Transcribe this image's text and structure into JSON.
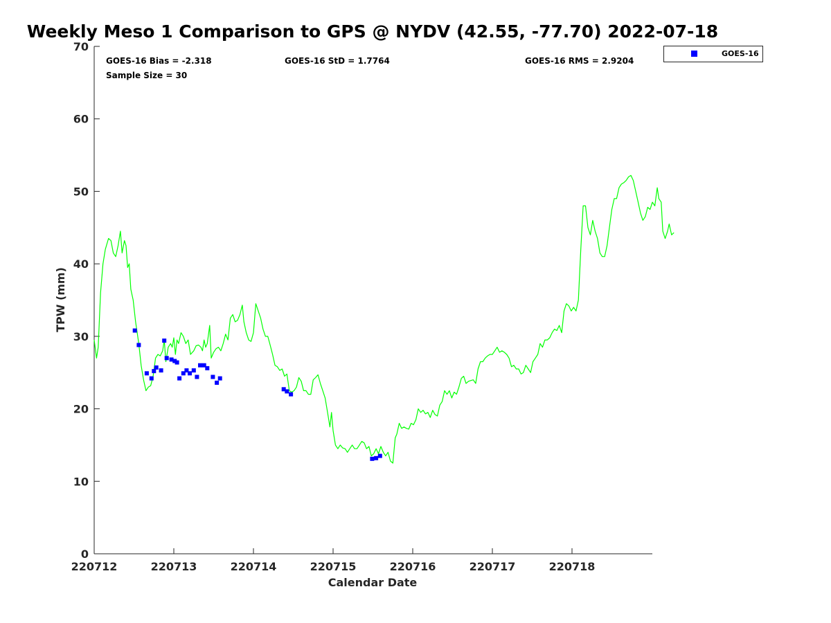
{
  "chart_data": {
    "type": "line",
    "title": "Weekly Meso 1 Comparison to GPS @ NYDV (42.55, -77.70) 2022-07-18",
    "xlabel": "Calendar Date",
    "ylabel": "TPW (mm)",
    "xlim": [
      0,
      7
    ],
    "ylim": [
      0,
      70
    ],
    "x_tick_labels": [
      "220712",
      "220713",
      "220714",
      "220715",
      "220716",
      "220717",
      "220718"
    ],
    "x_ticks": [
      0,
      1,
      2,
      3,
      4,
      5,
      6
    ],
    "y_ticks": [
      0,
      10,
      20,
      30,
      40,
      50,
      60,
      70
    ],
    "grid": false,
    "legend_position": "top-right",
    "stats": {
      "bias": "GOES-16 Bias = -2.318",
      "std": "GOES-16 StD = 1.7764",
      "rms": "GOES-16 RMS = 2.9204",
      "sample": "Sample Size = 30"
    },
    "series": [
      {
        "kind": "line",
        "color": "#00ff00",
        "points": [
          [
            0.0,
            29.5
          ],
          [
            0.03,
            27.0
          ],
          [
            0.05,
            28.5
          ],
          [
            0.08,
            36.0
          ],
          [
            0.11,
            40.0
          ],
          [
            0.14,
            42.0
          ],
          [
            0.18,
            43.5
          ],
          [
            0.21,
            43.2
          ],
          [
            0.24,
            41.5
          ],
          [
            0.27,
            41.0
          ],
          [
            0.3,
            42.5
          ],
          [
            0.33,
            44.5
          ],
          [
            0.35,
            41.5
          ],
          [
            0.38,
            43.2
          ],
          [
            0.4,
            42.5
          ],
          [
            0.42,
            39.5
          ],
          [
            0.44,
            40.0
          ],
          [
            0.46,
            36.5
          ],
          [
            0.49,
            35.0
          ],
          [
            0.52,
            32.0
          ],
          [
            0.56,
            29.0
          ],
          [
            0.59,
            26.0
          ],
          [
            0.62,
            24.0
          ],
          [
            0.65,
            22.5
          ],
          [
            0.68,
            23.0
          ],
          [
            0.71,
            23.2
          ],
          [
            0.74,
            24.5
          ],
          [
            0.77,
            27.0
          ],
          [
            0.8,
            27.5
          ],
          [
            0.83,
            27.3
          ],
          [
            0.86,
            28.0
          ],
          [
            0.88,
            29.5
          ],
          [
            0.9,
            26.5
          ],
          [
            0.93,
            28.5
          ],
          [
            0.96,
            29.0
          ],
          [
            0.98,
            28.5
          ],
          [
            1.0,
            29.8
          ],
          [
            1.02,
            27.5
          ],
          [
            1.04,
            29.5
          ],
          [
            1.06,
            29.0
          ],
          [
            1.09,
            30.5
          ],
          [
            1.12,
            30.0
          ],
          [
            1.15,
            29.0
          ],
          [
            1.18,
            29.5
          ],
          [
            1.21,
            27.5
          ],
          [
            1.25,
            28.0
          ],
          [
            1.28,
            28.7
          ],
          [
            1.31,
            28.8
          ],
          [
            1.34,
            28.5
          ],
          [
            1.36,
            28.0
          ],
          [
            1.38,
            29.5
          ],
          [
            1.4,
            28.5
          ],
          [
            1.42,
            29.0
          ],
          [
            1.45,
            31.5
          ],
          [
            1.47,
            27.0
          ],
          [
            1.5,
            27.8
          ],
          [
            1.53,
            28.3
          ],
          [
            1.56,
            28.5
          ],
          [
            1.59,
            28.0
          ],
          [
            1.62,
            29.0
          ],
          [
            1.65,
            30.3
          ],
          [
            1.68,
            29.5
          ],
          [
            1.71,
            32.5
          ],
          [
            1.74,
            33.0
          ],
          [
            1.77,
            32.0
          ],
          [
            1.8,
            32.2
          ],
          [
            1.83,
            33.0
          ],
          [
            1.86,
            34.3
          ],
          [
            1.88,
            32.0
          ],
          [
            1.91,
            30.5
          ],
          [
            1.94,
            29.5
          ],
          [
            1.97,
            29.3
          ],
          [
            2.0,
            30.5
          ],
          [
            2.03,
            34.5
          ],
          [
            2.06,
            33.5
          ],
          [
            2.09,
            32.5
          ],
          [
            2.12,
            31.0
          ],
          [
            2.15,
            30.0
          ],
          [
            2.18,
            30.0
          ],
          [
            2.21,
            28.8
          ],
          [
            2.24,
            27.5
          ],
          [
            2.27,
            26.0
          ],
          [
            2.3,
            25.8
          ],
          [
            2.33,
            25.3
          ],
          [
            2.36,
            25.5
          ],
          [
            2.39,
            24.5
          ],
          [
            2.42,
            24.8
          ],
          [
            2.45,
            22.5
          ],
          [
            2.48,
            22.3
          ],
          [
            2.51,
            22.5
          ],
          [
            2.54,
            23.0
          ],
          [
            2.57,
            24.3
          ],
          [
            2.6,
            23.8
          ],
          [
            2.63,
            22.5
          ],
          [
            2.66,
            22.5
          ],
          [
            2.69,
            22.0
          ],
          [
            2.72,
            22.0
          ],
          [
            2.75,
            24.0
          ],
          [
            2.78,
            24.3
          ],
          [
            2.81,
            24.7
          ],
          [
            2.84,
            23.5
          ],
          [
            2.87,
            22.5
          ],
          [
            2.9,
            21.5
          ],
          [
            2.93,
            19.5
          ],
          [
            2.96,
            17.5
          ],
          [
            2.98,
            19.5
          ],
          [
            3.0,
            17.0
          ],
          [
            3.03,
            15.0
          ],
          [
            3.06,
            14.5
          ],
          [
            3.09,
            15.0
          ],
          [
            3.12,
            14.6
          ],
          [
            3.15,
            14.5
          ],
          [
            3.18,
            14.0
          ],
          [
            3.21,
            14.5
          ],
          [
            3.24,
            15.0
          ],
          [
            3.27,
            14.5
          ],
          [
            3.3,
            14.5
          ],
          [
            3.33,
            15.0
          ],
          [
            3.36,
            15.5
          ],
          [
            3.39,
            15.3
          ],
          [
            3.42,
            14.5
          ],
          [
            3.45,
            14.8
          ],
          [
            3.48,
            13.5
          ],
          [
            3.51,
            13.8
          ],
          [
            3.54,
            14.5
          ],
          [
            3.57,
            13.8
          ],
          [
            3.6,
            14.8
          ],
          [
            3.63,
            14.0
          ],
          [
            3.66,
            13.5
          ],
          [
            3.69,
            14.0
          ],
          [
            3.72,
            12.8
          ],
          [
            3.75,
            12.5
          ],
          [
            3.78,
            16.0
          ],
          [
            3.8,
            16.5
          ],
          [
            3.83,
            18.0
          ],
          [
            3.86,
            17.3
          ],
          [
            3.89,
            17.5
          ],
          [
            3.92,
            17.3
          ],
          [
            3.95,
            17.2
          ],
          [
            3.98,
            18.0
          ],
          [
            4.01,
            17.8
          ],
          [
            4.04,
            18.5
          ],
          [
            4.07,
            20.0
          ],
          [
            4.1,
            19.5
          ],
          [
            4.13,
            19.8
          ],
          [
            4.16,
            19.3
          ],
          [
            4.19,
            19.5
          ],
          [
            4.22,
            18.8
          ],
          [
            4.25,
            19.8
          ],
          [
            4.28,
            19.2
          ],
          [
            4.31,
            19.0
          ],
          [
            4.34,
            20.5
          ],
          [
            4.37,
            21.0
          ],
          [
            4.4,
            22.5
          ],
          [
            4.43,
            22.0
          ],
          [
            4.46,
            22.5
          ],
          [
            4.49,
            21.5
          ],
          [
            4.52,
            22.3
          ],
          [
            4.55,
            22.0
          ],
          [
            4.58,
            23.0
          ],
          [
            4.61,
            24.2
          ],
          [
            4.64,
            24.5
          ],
          [
            4.67,
            23.5
          ],
          [
            4.7,
            23.8
          ],
          [
            4.73,
            23.9
          ],
          [
            4.76,
            24.0
          ],
          [
            4.79,
            23.5
          ],
          [
            4.82,
            25.5
          ],
          [
            4.85,
            26.5
          ],
          [
            4.88,
            26.5
          ],
          [
            4.91,
            27.0
          ],
          [
            4.94,
            27.3
          ],
          [
            4.97,
            27.5
          ],
          [
            5.0,
            27.5
          ],
          [
            5.03,
            28.0
          ],
          [
            5.06,
            28.5
          ],
          [
            5.09,
            27.8
          ],
          [
            5.12,
            28.0
          ],
          [
            5.15,
            27.8
          ],
          [
            5.18,
            27.5
          ],
          [
            5.21,
            27.0
          ],
          [
            5.24,
            25.8
          ],
          [
            5.27,
            26.0
          ],
          [
            5.3,
            25.5
          ],
          [
            5.33,
            25.5
          ],
          [
            5.36,
            24.8
          ],
          [
            5.39,
            25.0
          ],
          [
            5.42,
            26.0
          ],
          [
            5.45,
            25.5
          ],
          [
            5.48,
            25.0
          ],
          [
            5.51,
            26.5
          ],
          [
            5.54,
            27.0
          ],
          [
            5.57,
            27.5
          ],
          [
            5.6,
            29.0
          ],
          [
            5.63,
            28.5
          ],
          [
            5.66,
            29.5
          ],
          [
            5.69,
            29.5
          ],
          [
            5.72,
            29.8
          ],
          [
            5.75,
            30.5
          ],
          [
            5.78,
            31.0
          ],
          [
            5.81,
            30.8
          ],
          [
            5.84,
            31.5
          ],
          [
            5.87,
            30.5
          ],
          [
            5.9,
            33.5
          ],
          [
            5.93,
            34.5
          ],
          [
            5.96,
            34.2
          ],
          [
            5.99,
            33.5
          ],
          [
            6.02,
            34.0
          ],
          [
            6.05,
            33.5
          ],
          [
            6.08,
            35.0
          ],
          [
            6.11,
            42.0
          ],
          [
            6.14,
            48.0
          ],
          [
            6.17,
            48.0
          ],
          [
            6.2,
            45.0
          ],
          [
            6.23,
            44.0
          ],
          [
            6.26,
            46.0
          ],
          [
            6.29,
            44.5
          ],
          [
            6.32,
            43.5
          ],
          [
            6.35,
            41.5
          ],
          [
            6.38,
            41.0
          ],
          [
            6.41,
            41.0
          ],
          [
            6.44,
            42.5
          ],
          [
            6.47,
            45.0
          ],
          [
            6.5,
            47.5
          ],
          [
            6.53,
            49.0
          ],
          [
            6.56,
            49.0
          ],
          [
            6.59,
            50.5
          ],
          [
            6.62,
            51.0
          ],
          [
            6.65,
            51.2
          ],
          [
            6.68,
            51.5
          ],
          [
            6.71,
            52.0
          ],
          [
            6.74,
            52.2
          ],
          [
            6.77,
            51.5
          ],
          [
            6.8,
            50.0
          ],
          [
            6.83,
            48.5
          ],
          [
            6.86,
            47.0
          ],
          [
            6.89,
            46.0
          ],
          [
            6.92,
            46.5
          ],
          [
            6.95,
            47.8
          ],
          [
            6.98,
            47.5
          ],
          [
            7.01,
            48.5
          ],
          [
            7.04,
            48.0
          ],
          [
            7.07,
            50.5
          ],
          [
            7.09,
            49.0
          ],
          [
            7.12,
            48.5
          ],
          [
            7.14,
            44.5
          ],
          [
            7.17,
            43.5
          ],
          [
            7.2,
            44.5
          ],
          [
            7.22,
            45.5
          ],
          [
            7.25,
            44.0
          ],
          [
            7.28,
            44.3
          ]
        ]
      },
      {
        "kind": "scatter",
        "name": "GOES-16",
        "color": "#0000ff",
        "points": [
          [
            0.51,
            30.8
          ],
          [
            0.56,
            28.8
          ],
          [
            0.66,
            24.9
          ],
          [
            0.72,
            24.2
          ],
          [
            0.75,
            25.2
          ],
          [
            0.78,
            25.7
          ],
          [
            0.84,
            25.3
          ],
          [
            0.88,
            29.4
          ],
          [
            0.91,
            27.0
          ],
          [
            0.97,
            26.8
          ],
          [
            1.01,
            26.6
          ],
          [
            1.04,
            26.4
          ],
          [
            1.07,
            24.2
          ],
          [
            1.12,
            24.9
          ],
          [
            1.16,
            25.3
          ],
          [
            1.2,
            24.9
          ],
          [
            1.25,
            25.3
          ],
          [
            1.29,
            24.4
          ],
          [
            1.33,
            26.0
          ],
          [
            1.38,
            26.0
          ],
          [
            1.42,
            25.6
          ],
          [
            1.49,
            24.4
          ],
          [
            1.54,
            23.6
          ],
          [
            1.58,
            24.2
          ],
          [
            2.38,
            22.7
          ],
          [
            2.42,
            22.4
          ],
          [
            2.47,
            22.0
          ],
          [
            3.49,
            13.1
          ],
          [
            3.54,
            13.2
          ],
          [
            3.59,
            13.5
          ]
        ]
      }
    ]
  }
}
